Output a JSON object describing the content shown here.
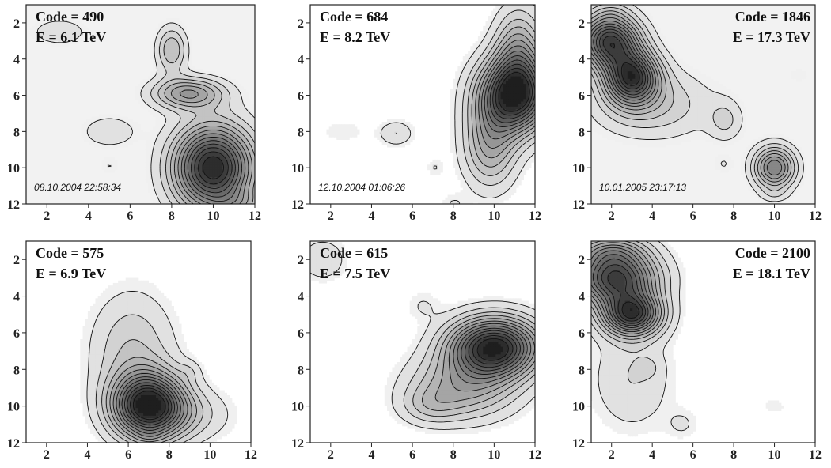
{
  "chart_data": [
    {
      "type": "contour",
      "xlim": [
        1,
        12
      ],
      "ylim": [
        1,
        12
      ],
      "y_inverted": true,
      "xticks": [
        2,
        4,
        6,
        8,
        10,
        12
      ],
      "yticks": [
        2,
        4,
        6,
        8,
        10,
        12
      ],
      "code_label": "Code = 490",
      "energy_label": "E = 6.1 TeV",
      "label_align": "left",
      "timestamp": "08.10.2004 22:58:34",
      "background": "#f2f2f2",
      "blobs": [
        {
          "x": 10.0,
          "y": 10.0,
          "peak": 14,
          "rx": 1.3,
          "ry": 1.6
        },
        {
          "x": 8.8,
          "y": 5.9,
          "peak": 6,
          "rx": 1.2,
          "ry": 0.6
        },
        {
          "x": 8.0,
          "y": 3.5,
          "peak": 4,
          "rx": 0.5,
          "ry": 0.9
        },
        {
          "x": 2.6,
          "y": 2.5,
          "peak": 2,
          "rx": 0.9,
          "ry": 0.5
        },
        {
          "x": 5.0,
          "y": 8.0,
          "peak": 2,
          "rx": 0.9,
          "ry": 0.6
        },
        {
          "x": 5.0,
          "y": 9.9,
          "peak": 1,
          "rx": 0.4,
          "ry": 0.4
        },
        {
          "x": 11.3,
          "y": 12.0,
          "peak": 2,
          "rx": 0.9,
          "ry": 0.5
        }
      ]
    },
    {
      "type": "contour",
      "xlim": [
        1,
        12
      ],
      "ylim": [
        1,
        12
      ],
      "y_inverted": true,
      "xticks": [
        2,
        4,
        6,
        8,
        10,
        12
      ],
      "yticks": [
        2,
        4,
        6,
        8,
        10,
        12
      ],
      "code_label": "Code = 684",
      "energy_label": "E = 8.2 TeV",
      "label_align": "left",
      "timestamp": "12.10.2004 01:06:26",
      "background": "#ffffff",
      "blobs": [
        {
          "x": 11.0,
          "y": 6.0,
          "peak": 14,
          "rx": 1.2,
          "ry": 1.4
        },
        {
          "x": 11.2,
          "y": 3.5,
          "peak": 5,
          "rx": 0.8,
          "ry": 1.6
        },
        {
          "x": 9.8,
          "y": 8.8,
          "peak": 5,
          "rx": 0.9,
          "ry": 1.6
        },
        {
          "x": 2.6,
          "y": 8.0,
          "peak": 1,
          "rx": 0.8,
          "ry": 0.4
        },
        {
          "x": 5.2,
          "y": 8.1,
          "peak": 2,
          "rx": 0.6,
          "ry": 0.5
        },
        {
          "x": 7.1,
          "y": 10.0,
          "peak": 1,
          "rx": 0.3,
          "ry": 0.4
        },
        {
          "x": 8.0,
          "y": 12.0,
          "peak": 1,
          "rx": 0.5,
          "ry": 0.4
        }
      ]
    },
    {
      "type": "contour",
      "xlim": [
        1,
        12
      ],
      "ylim": [
        1,
        12
      ],
      "y_inverted": true,
      "xticks": [
        2,
        4,
        6,
        8,
        10,
        12
      ],
      "yticks": [
        2,
        4,
        6,
        8,
        10,
        12
      ],
      "code_label": "Code = 1846",
      "energy_label": "E = 17.3 TeV",
      "label_align": "right",
      "timestamp": "10.01.2005 23:17:13",
      "background": "#f2f2f2",
      "blobs": [
        {
          "x": 1.9,
          "y": 3.0,
          "peak": 12,
          "rx": 1.0,
          "ry": 1.0
        },
        {
          "x": 3.0,
          "y": 5.0,
          "peak": 12,
          "rx": 0.9,
          "ry": 1.0
        },
        {
          "x": 4.0,
          "y": 6.5,
          "peak": 3,
          "rx": 2.0,
          "ry": 1.3
        },
        {
          "x": 10.0,
          "y": 10.0,
          "peak": 8,
          "rx": 0.7,
          "ry": 0.8
        },
        {
          "x": 7.6,
          "y": 7.4,
          "peak": 2,
          "rx": 0.6,
          "ry": 0.8
        },
        {
          "x": 11.2,
          "y": 4.9,
          "peak": 1,
          "rx": 0.4,
          "ry": 0.3
        },
        {
          "x": 7.5,
          "y": 9.8,
          "peak": 1,
          "rx": 0.4,
          "ry": 0.4
        },
        {
          "x": 2.0,
          "y": 1.4,
          "peak": 1,
          "rx": 0.6,
          "ry": 0.4
        },
        {
          "x": 10.0,
          "y": 11.5,
          "peak": 1,
          "rx": 0.5,
          "ry": 0.3
        }
      ]
    },
    {
      "type": "contour",
      "xlim": [
        1,
        12
      ],
      "ylim": [
        1,
        12
      ],
      "y_inverted": true,
      "xticks": [
        2,
        4,
        6,
        8,
        10,
        12
      ],
      "yticks": [
        2,
        4,
        6,
        8,
        10,
        12
      ],
      "code_label": "Code = 575",
      "energy_label": "E = 6.9 TeV",
      "label_align": "left",
      "timestamp": "",
      "background": "#ffffff",
      "blobs": [
        {
          "x": 7.0,
          "y": 10.0,
          "peak": 14,
          "rx": 1.2,
          "ry": 1.2
        },
        {
          "x": 6.2,
          "y": 7.0,
          "peak": 3,
          "rx": 1.4,
          "ry": 2.2
        },
        {
          "x": 9.0,
          "y": 10.5,
          "peak": 2,
          "rx": 1.5,
          "ry": 1.0
        },
        {
          "x": 9.0,
          "y": 8.1,
          "peak": 1,
          "rx": 0.4,
          "ry": 0.4
        },
        {
          "x": 7.0,
          "y": 11.7,
          "peak": 1,
          "rx": 0.5,
          "ry": 0.3
        }
      ]
    },
    {
      "type": "contour",
      "xlim": [
        1,
        12
      ],
      "ylim": [
        1,
        12
      ],
      "y_inverted": true,
      "xticks": [
        2,
        4,
        6,
        8,
        10,
        12
      ],
      "yticks": [
        2,
        4,
        6,
        8,
        10,
        12
      ],
      "code_label": "Code = 615",
      "energy_label": "E = 7.5 TeV",
      "label_align": "left",
      "timestamp": "",
      "background": "#ffffff",
      "blobs": [
        {
          "x": 10.0,
          "y": 6.8,
          "peak": 14,
          "rx": 1.5,
          "ry": 1.1
        },
        {
          "x": 8.5,
          "y": 9.0,
          "peak": 5,
          "rx": 1.8,
          "ry": 1.2
        },
        {
          "x": 6.8,
          "y": 10.0,
          "peak": 2,
          "rx": 1.0,
          "ry": 0.7
        },
        {
          "x": 1.6,
          "y": 2.0,
          "peak": 2,
          "rx": 0.8,
          "ry": 0.8
        },
        {
          "x": 6.5,
          "y": 4.5,
          "peak": 1,
          "rx": 0.6,
          "ry": 0.6
        }
      ]
    },
    {
      "type": "contour",
      "xlim": [
        1,
        12
      ],
      "ylim": [
        1,
        12
      ],
      "y_inverted": true,
      "xticks": [
        2,
        4,
        6,
        8,
        10,
        12
      ],
      "yticks": [
        2,
        4,
        6,
        8,
        10,
        12
      ],
      "code_label": "Code = 2100",
      "energy_label": "E = 18.1 TeV",
      "label_align": "right",
      "timestamp": "",
      "background": "#ffffff",
      "blobs": [
        {
          "x": 2.2,
          "y": 3.0,
          "peak": 12,
          "rx": 1.4,
          "ry": 1.0
        },
        {
          "x": 3.0,
          "y": 5.0,
          "peak": 12,
          "rx": 1.0,
          "ry": 0.8
        },
        {
          "x": 2.0,
          "y": 1.5,
          "peak": 4,
          "rx": 1.2,
          "ry": 0.6
        },
        {
          "x": 3.0,
          "y": 8.5,
          "peak": 2,
          "rx": 1.4,
          "ry": 2.0
        },
        {
          "x": 3.8,
          "y": 7.9,
          "peak": 1,
          "rx": 0.4,
          "ry": 0.4
        },
        {
          "x": 10.0,
          "y": 10.0,
          "peak": 1,
          "rx": 0.4,
          "ry": 0.3
        },
        {
          "x": 5.5,
          "y": 11.0,
          "peak": 1,
          "rx": 0.6,
          "ry": 0.6
        }
      ]
    }
  ]
}
